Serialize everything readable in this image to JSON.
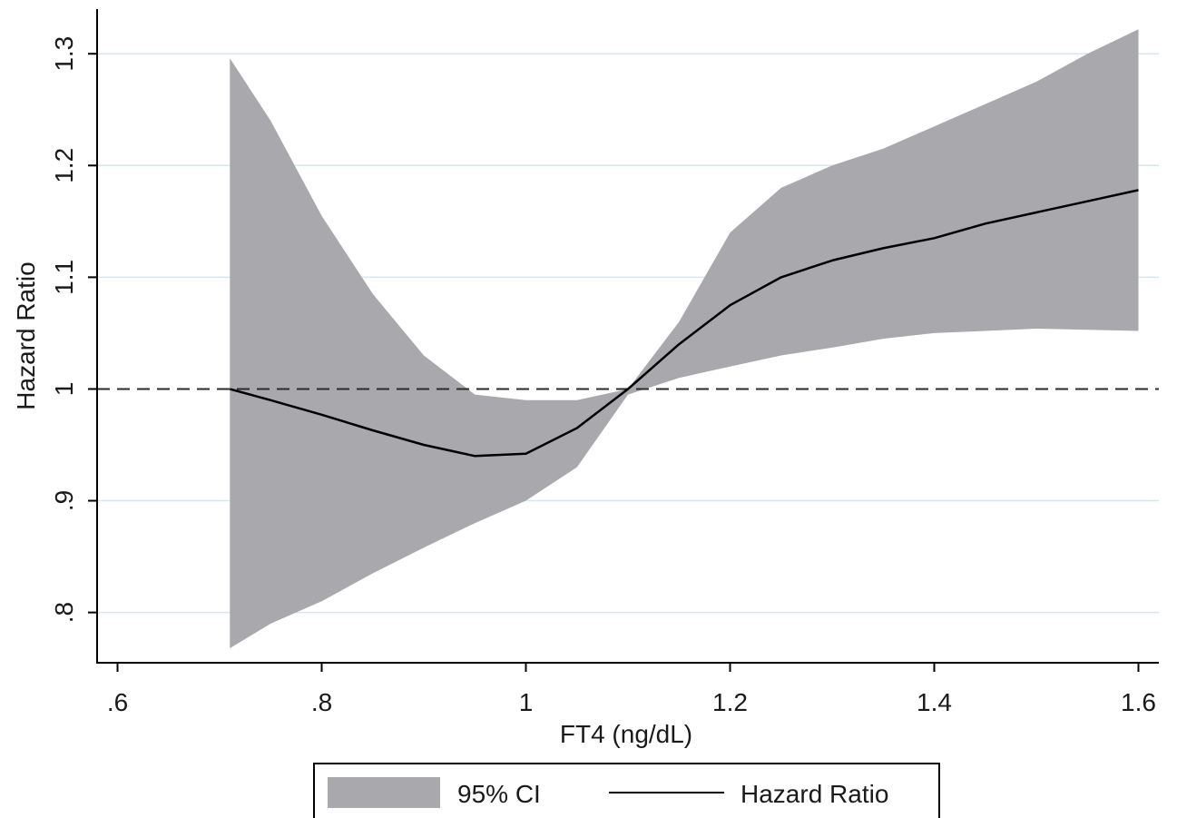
{
  "chart_data": {
    "type": "line",
    "title": "",
    "xlabel": "FT4 (ng/dL)",
    "ylabel": "Hazard Ratio",
    "xlim": [
      0.58,
      1.62
    ],
    "ylim": [
      0.755,
      1.34
    ],
    "x_ticks": [
      0.6,
      0.8,
      1.0,
      1.2,
      1.4,
      1.6
    ],
    "x_tick_labels": [
      ".6",
      ".8",
      "1",
      "1.2",
      "1.4",
      "1.6"
    ],
    "y_ticks": [
      0.8,
      0.9,
      1.0,
      1.1,
      1.2,
      1.3
    ],
    "y_tick_labels": [
      ".8",
      ".9",
      "1",
      "1.1",
      "1.2",
      "1.3"
    ],
    "reference_line": {
      "y": 1.0,
      "style": "dashed"
    },
    "grid": {
      "horizontal": true,
      "vertical": false,
      "color": "#d6e7ee"
    },
    "legend_position": "bottom",
    "x": [
      0.71,
      0.75,
      0.8,
      0.85,
      0.9,
      0.95,
      1.0,
      1.05,
      1.1,
      1.15,
      1.2,
      1.25,
      1.3,
      1.35,
      1.4,
      1.45,
      1.5,
      1.55,
      1.6
    ],
    "series": [
      {
        "name": "95% CI",
        "kind": "band",
        "color": "#a9a9ad",
        "lower": [
          0.768,
          0.79,
          0.81,
          0.835,
          0.858,
          0.88,
          0.9,
          0.93,
          0.995,
          1.01,
          1.02,
          1.03,
          1.037,
          1.045,
          1.05,
          1.052,
          1.054,
          1.053,
          1.052
        ],
        "upper": [
          1.296,
          1.24,
          1.155,
          1.085,
          1.03,
          0.995,
          0.99,
          0.99,
          1.0,
          1.06,
          1.14,
          1.18,
          1.2,
          1.215,
          1.235,
          1.255,
          1.275,
          1.3,
          1.322
        ]
      },
      {
        "name": "Hazard Ratio",
        "kind": "line",
        "color": "#000000",
        "values": [
          1.0,
          0.99,
          0.977,
          0.963,
          0.95,
          0.94,
          0.942,
          0.965,
          1.0,
          1.04,
          1.075,
          1.1,
          1.115,
          1.126,
          1.135,
          1.148,
          1.158,
          1.168,
          1.178
        ]
      }
    ]
  }
}
